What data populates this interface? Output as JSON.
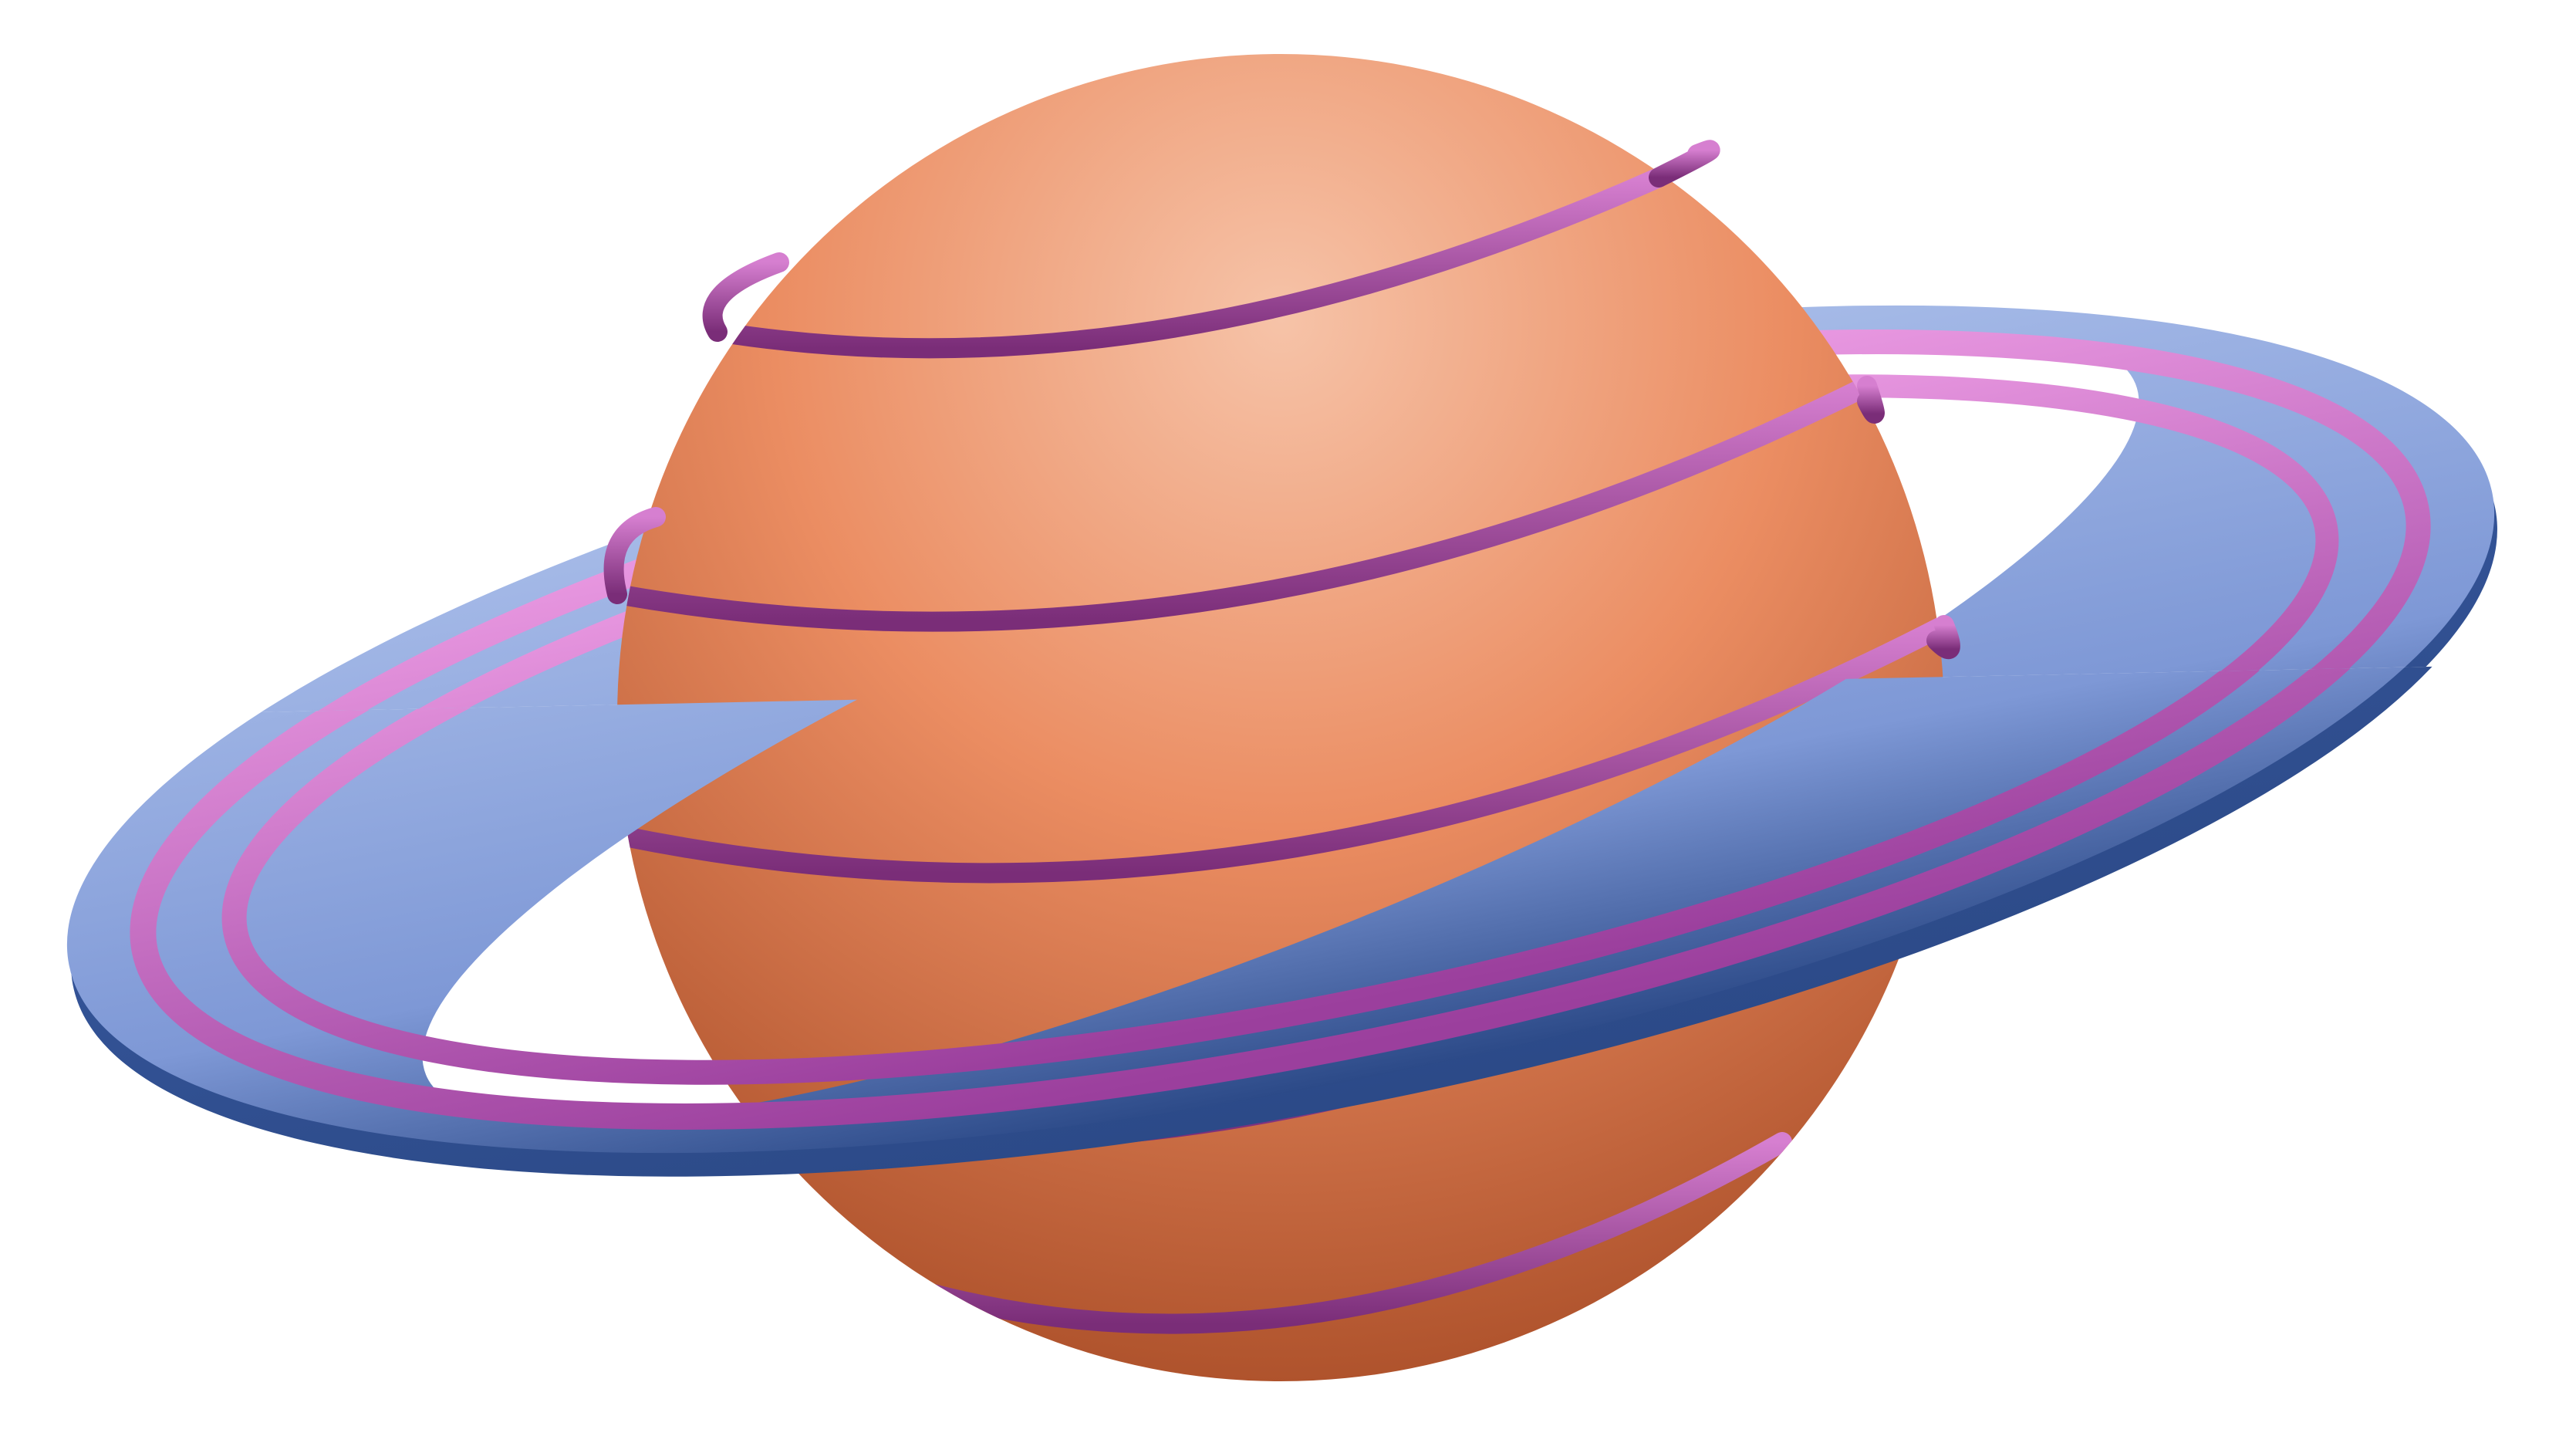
{
  "illustration": {
    "subject": "ringed-planet",
    "colors": {
      "background": "#ffffff",
      "planet_light": "#f6c3a8",
      "planet_mid": "#eb8d62",
      "planet_dark": "#a84c26",
      "band_light": "#d67fd0",
      "band_dark": "#7a2d78",
      "ring_light": "#a9bde9",
      "ring_mid": "#7e98d6",
      "ring_dark": "#2c4a88",
      "ring_stripe_light": "#ec9ce4",
      "ring_stripe_dark": "#9b3f9d"
    }
  }
}
